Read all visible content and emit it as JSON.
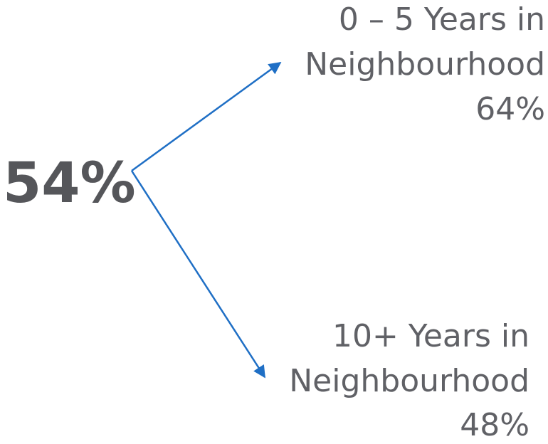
{
  "main": "54%",
  "branches": [
    {
      "label": [
        "0 – 5 Years in",
        "Neighbourhood"
      ],
      "value": "64%"
    },
    {
      "label": [
        "10+ Years in",
        "Neighbourhood"
      ],
      "value": "48%"
    }
  ]
}
